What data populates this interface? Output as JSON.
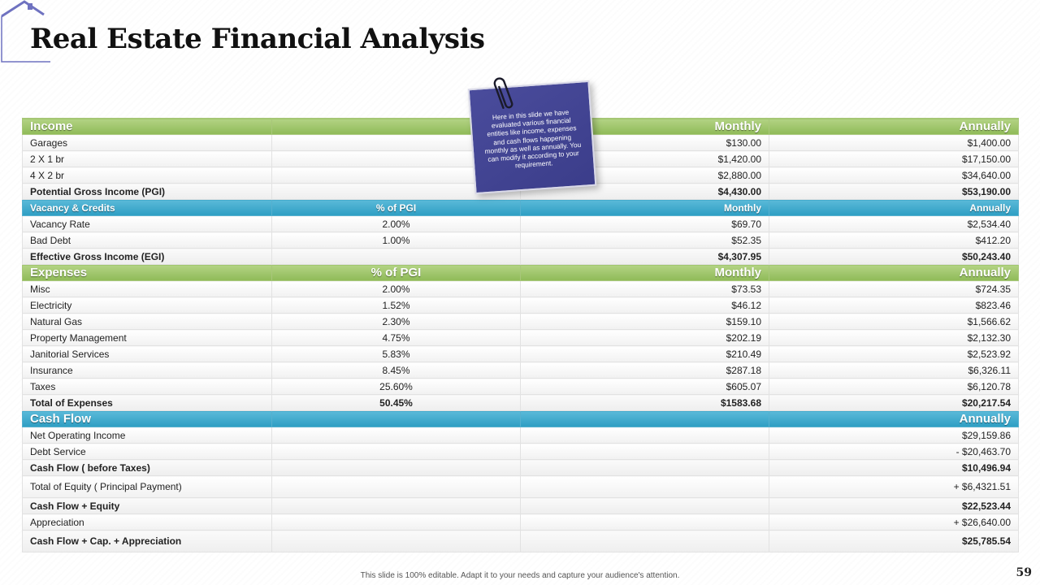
{
  "slide": {
    "title": "Real Estate Financial Analysis",
    "footer_note": "This slide is 100% editable. Adapt it to your needs and capture your audience's attention.",
    "page_number": "59",
    "colors": {
      "green_header": "#9bc46a",
      "blue_header": "#3aa8cc",
      "sticky": "#43458f",
      "logo": "#6f72c0"
    }
  },
  "sticky_note": {
    "text": "Here in this slide we have evaluated various financial entities like income, expenses and cash flows happening monthly as well as annually. You can modify it according to your requirement."
  },
  "income": {
    "header": {
      "label": "Income",
      "monthly": "Monthly",
      "annually": "Annually"
    },
    "rows": [
      {
        "label": "Garages",
        "pgi": "",
        "monthly": "$130.00",
        "annually": "$1,400.00"
      },
      {
        "label": "2 X 1 br",
        "pgi": "",
        "monthly": "$1,420.00",
        "annually": "$17,150.00"
      },
      {
        "label": "4 X 2 br",
        "pgi": "",
        "monthly": "$2,880.00",
        "annually": "$34,640.00"
      }
    ],
    "total": {
      "label": "Potential Gross Income (PGI)",
      "monthly": "$4,430.00",
      "annually": "$53,190.00"
    }
  },
  "vacancy": {
    "header": {
      "label": "Vacancy & Credits",
      "pgi": "% of PGI",
      "monthly": "Monthly",
      "annually": "Annually"
    },
    "rows": [
      {
        "label": "Vacancy Rate",
        "pgi": "2.00%",
        "monthly": "$69.70",
        "annually": "$2,534.40"
      },
      {
        "label": "Bad Debt",
        "pgi": "1.00%",
        "monthly": "$52.35",
        "annually": "$412.20"
      }
    ],
    "total": {
      "label": "Effective Gross Income (EGI)",
      "monthly": "$4,307.95",
      "annually": "$50,243.40"
    }
  },
  "expenses": {
    "header": {
      "label": "Expenses",
      "pgi": "% of PGI",
      "monthly": "Monthly",
      "annually": "Annually"
    },
    "rows": [
      {
        "label": "Misc",
        "pgi": "2.00%",
        "monthly": "$73.53",
        "annually": "$724.35"
      },
      {
        "label": "Electricity",
        "pgi": "1.52%",
        "monthly": "$46.12",
        "annually": "$823.46"
      },
      {
        "label": "Natural Gas",
        "pgi": "2.30%",
        "monthly": "$159.10",
        "annually": "$1,566.62"
      },
      {
        "label": "Property Management",
        "pgi": "4.75%",
        "monthly": "$202.19",
        "annually": "$2,132.30"
      },
      {
        "label": "Janitorial Services",
        "pgi": "5.83%",
        "monthly": "$210.49",
        "annually": "$2,523.92"
      },
      {
        "label": "Insurance",
        "pgi": "8.45%",
        "monthly": "$287.18",
        "annually": "$6,326.11"
      },
      {
        "label": "Taxes",
        "pgi": "25.60%",
        "monthly": "$605.07",
        "annually": "$6,120.78"
      }
    ],
    "total": {
      "label": "Total of Expenses",
      "pgi": "50.45%",
      "monthly": "$1583.68",
      "annually": "$20,217.54"
    }
  },
  "cashflow": {
    "header": {
      "label": "Cash Flow",
      "annually": "Annually"
    },
    "rows": [
      {
        "label": "Net Operating Income",
        "annually": "$29,159.86"
      },
      {
        "label": "Debt Service",
        "annually": "- $20,463.70"
      },
      {
        "label": "Cash Flow ( before Taxes)",
        "annually": "$10,496.94"
      },
      {
        "label": "Total of Equity ( Principal Payment)",
        "annually": "+ $6,4321.51"
      },
      {
        "label": "Cash Flow + Equity",
        "annually": "$22,523.44"
      },
      {
        "label": "Appreciation",
        "annually": "+ $26,640.00"
      },
      {
        "label": "Cash Flow + Cap. + Appreciation",
        "annually": "$25,785.54"
      }
    ]
  }
}
